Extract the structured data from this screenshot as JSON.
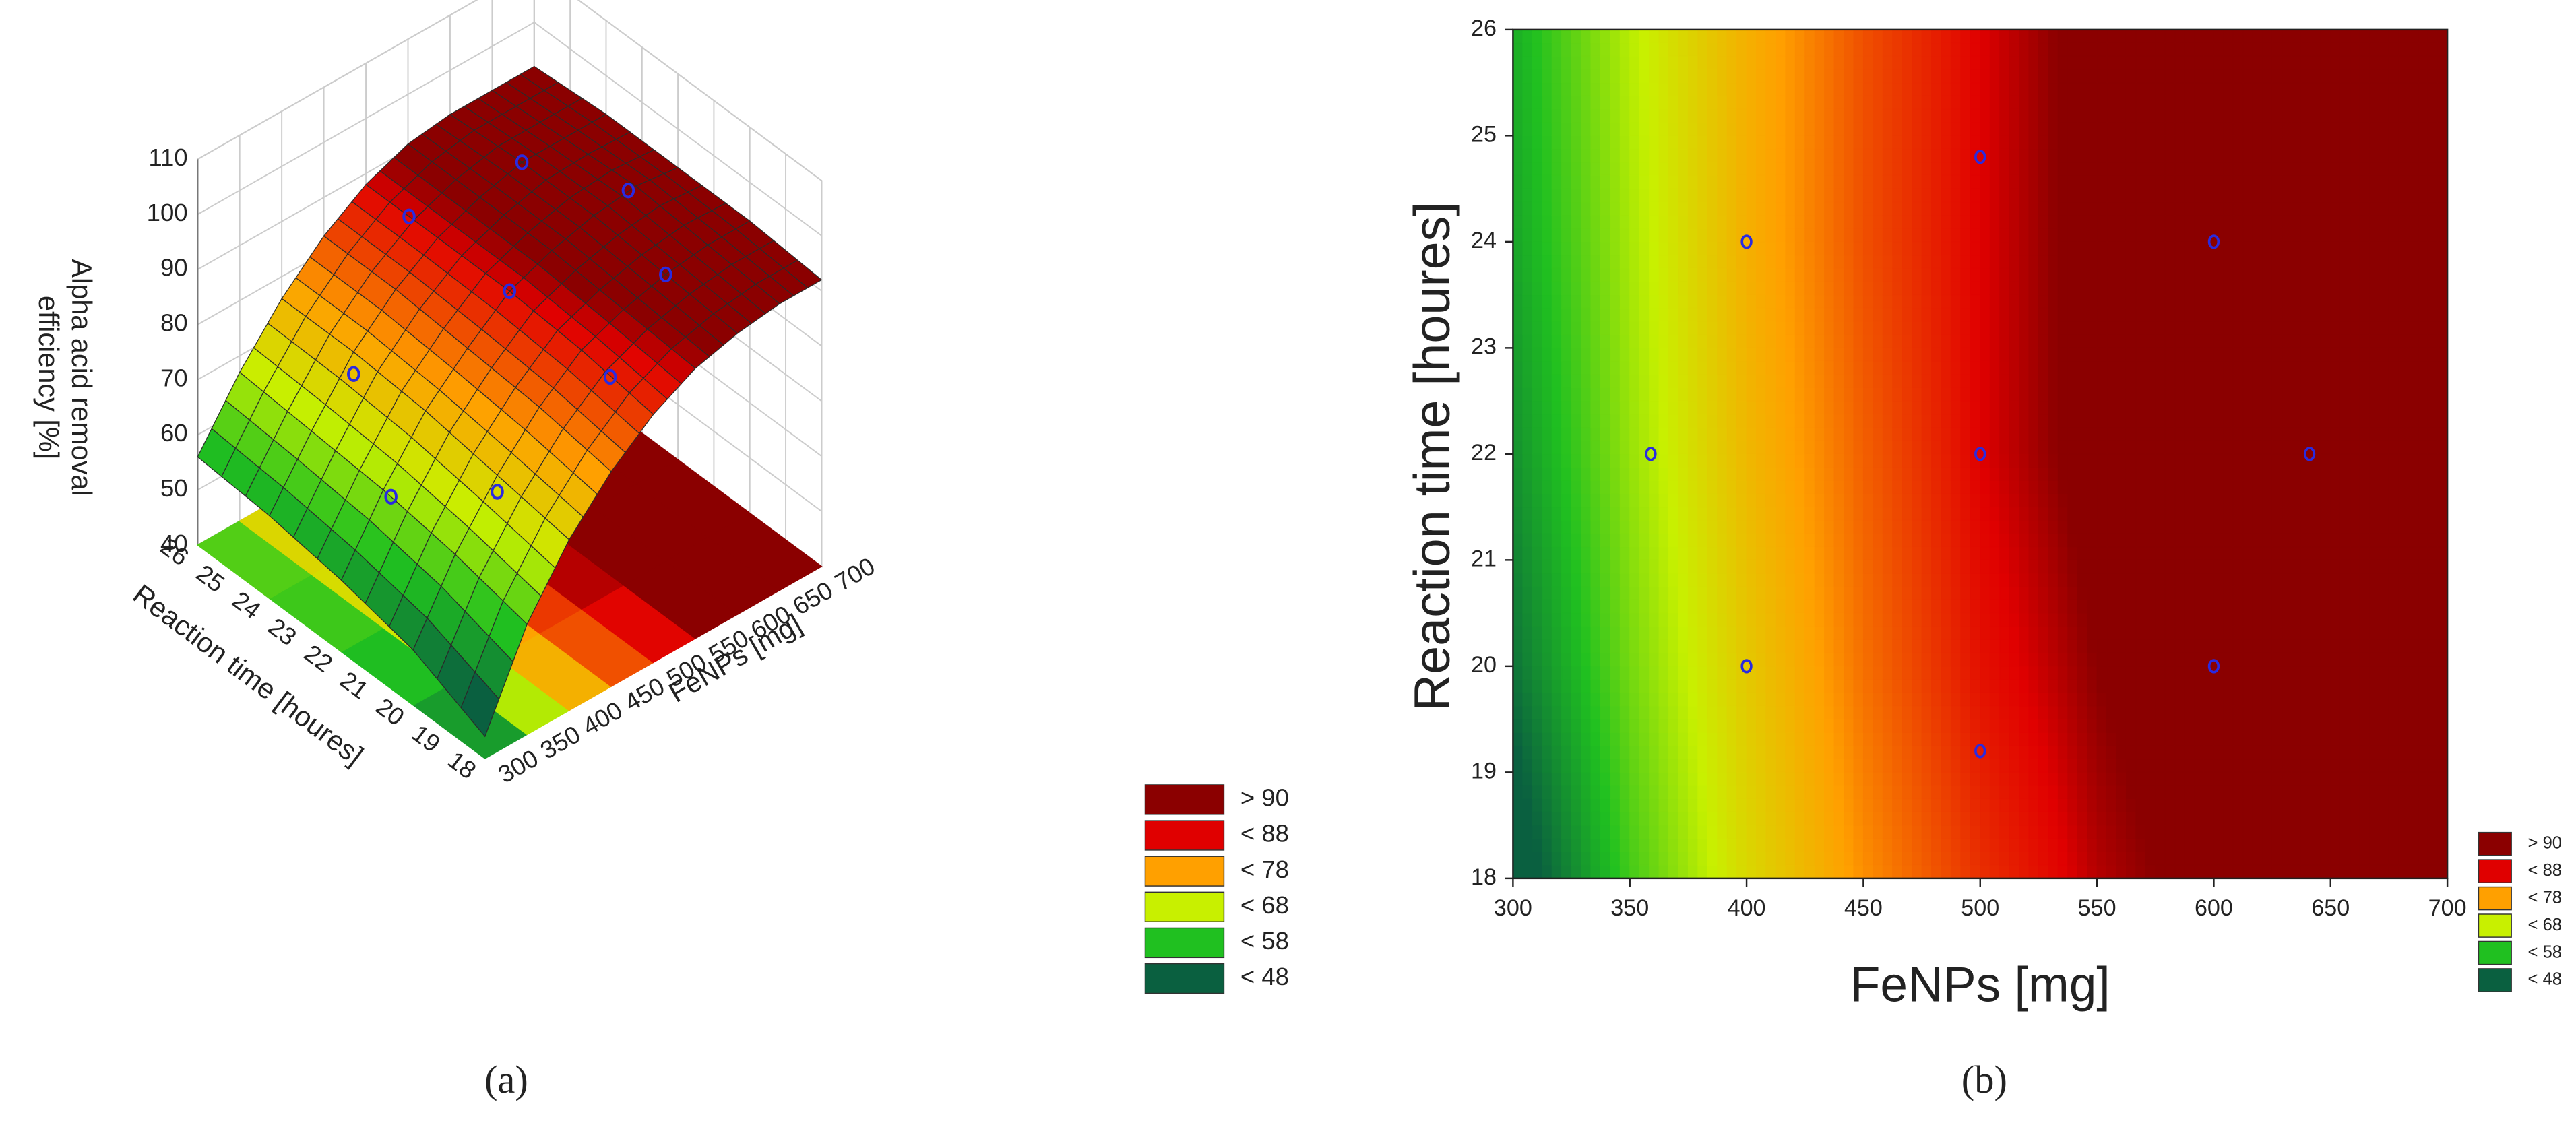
{
  "chart_data": [
    {
      "type": "surface3d",
      "panel_label": "(a)",
      "xlabel": "FeNPs [mg]",
      "ylabel": "Reaction time [houres]",
      "zlabel": [
        "Alpha acid removal",
        "efficiency [%]"
      ],
      "grid_x": [
        300,
        350,
        400,
        450,
        500,
        550,
        600,
        650,
        700
      ],
      "grid_y": [
        18,
        20,
        22,
        24,
        26
      ],
      "z": [
        [
          44,
          60,
          71,
          79,
          85,
          89,
          91,
          92,
          92
        ],
        [
          50,
          63,
          73,
          81,
          87,
          90,
          92,
          93,
          93
        ],
        [
          53,
          65,
          75,
          82,
          88,
          91,
          93,
          94,
          93
        ],
        [
          55,
          66,
          76,
          83,
          88,
          91,
          93,
          93,
          93
        ],
        [
          56,
          67,
          76,
          83,
          88,
          91,
          92,
          92,
          92
        ]
      ],
      "xlim": [
        300,
        700
      ],
      "ylim": [
        18,
        26
      ],
      "zlim": [
        40,
        110
      ],
      "xticks": [
        300,
        350,
        400,
        450,
        500,
        550,
        600,
        650,
        700
      ],
      "yticks": [
        18,
        19,
        20,
        21,
        22,
        23,
        24,
        25,
        26
      ],
      "zticks": [
        40,
        50,
        60,
        70,
        80,
        90,
        100,
        110
      ],
      "points": {
        "x": [
          359,
          400,
          400,
          500,
          500,
          500,
          600,
          600,
          641
        ],
        "y": [
          22,
          24,
          20,
          24.8,
          22,
          19.2,
          24,
          20,
          22
        ],
        "z": [
          63,
          72,
          70,
          88,
          88,
          86,
          93,
          92,
          94
        ],
        "color": "#2a2ae0"
      },
      "legend": [
        {
          "label": "> 90",
          "value": 90,
          "color": "#8b0000"
        },
        {
          "label": "< 88",
          "value": 88,
          "color": "#e00000"
        },
        {
          "label": "< 78",
          "value": 78,
          "color": "#ffa000"
        },
        {
          "label": "< 68",
          "value": 68,
          "color": "#c8f000"
        },
        {
          "label": "< 58",
          "value": 58,
          "color": "#20c020"
        },
        {
          "label": "< 48",
          "value": 48,
          "color": "#0a6040"
        }
      ]
    },
    {
      "type": "contour",
      "panel_label": "(b)",
      "xlabel": "FeNPs [mg]",
      "ylabel": "Reaction time [houres]",
      "grid_x": [
        300,
        350,
        400,
        450,
        500,
        550,
        600,
        650,
        700
      ],
      "grid_y": [
        18,
        20,
        22,
        24,
        26
      ],
      "z": [
        [
          44,
          60,
          71,
          79,
          85,
          89,
          91,
          92,
          92
        ],
        [
          50,
          63,
          73,
          81,
          87,
          90,
          92,
          93,
          93
        ],
        [
          53,
          65,
          75,
          82,
          88,
          91,
          93,
          94,
          93
        ],
        [
          55,
          66,
          76,
          83,
          88,
          91,
          93,
          93,
          93
        ],
        [
          56,
          67,
          76,
          83,
          88,
          91,
          92,
          92,
          92
        ]
      ],
      "xlim": [
        300,
        700
      ],
      "ylim": [
        18,
        26
      ],
      "xticks": [
        300,
        350,
        400,
        450,
        500,
        550,
        600,
        650,
        700
      ],
      "yticks": [
        18,
        19,
        20,
        21,
        22,
        23,
        24,
        25,
        26
      ],
      "points": {
        "x": [
          359,
          400,
          400,
          500,
          500,
          500,
          600,
          600,
          641
        ],
        "y": [
          22,
          24,
          20,
          24.8,
          22,
          19.2,
          24,
          20,
          22
        ],
        "color": "#2a2ae0"
      },
      "legend": [
        {
          "label": "> 90",
          "value": 90,
          "color": "#8b0000"
        },
        {
          "label": "< 88",
          "value": 88,
          "color": "#e00000"
        },
        {
          "label": "< 78",
          "value": 78,
          "color": "#ffa000"
        },
        {
          "label": "< 68",
          "value": 68,
          "color": "#c8f000"
        },
        {
          "label": "< 58",
          "value": 58,
          "color": "#20c020"
        },
        {
          "label": "< 48",
          "value": 48,
          "color": "#0a6040"
        }
      ]
    }
  ]
}
